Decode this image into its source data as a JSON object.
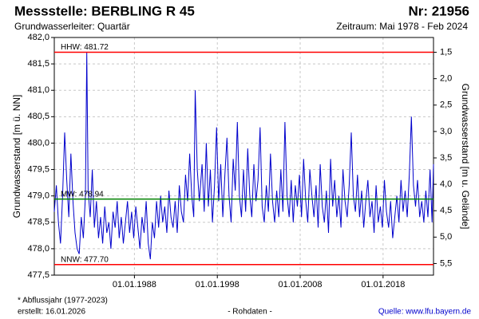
{
  "chart_data": {
    "type": "line",
    "title": "Messstelle: BERBLING R 45",
    "number": "Nr: 21956",
    "subtitle": "Grundwasserleiter: Quartär",
    "period": "Zeitraum: Mai 1978 - Feb 2024",
    "ylabel": "Grundwasserstand [m ü. NN]",
    "y2label": "Grundwasserstand [m u. Gelände]",
    "footnote": "* Abflussjahr (1977-2023)",
    "created": "erstellt:  16.01.2026",
    "data_note": "- Rohdaten -",
    "source": "Quelle: www.lfu.bayern.de",
    "grid": true,
    "xlim": [
      "1978-05",
      "2024-02"
    ],
    "xticks": [
      {
        "value": "1988-01-01",
        "label": "01.01.1988"
      },
      {
        "value": "1998-01-01",
        "label": "01.01.1998"
      },
      {
        "value": "2008-01-01",
        "label": "01.01.2008"
      },
      {
        "value": "2018-01-01",
        "label": "01.01.2018"
      }
    ],
    "ylim": [
      477.5,
      482.0
    ],
    "yticks": [
      {
        "value": 477.5,
        "label": "477,5"
      },
      {
        "value": 478.0,
        "label": "478,0"
      },
      {
        "value": 478.5,
        "label": "478,5"
      },
      {
        "value": 479.0,
        "label": "479,0"
      },
      {
        "value": 479.5,
        "label": "479,5"
      },
      {
        "value": 480.0,
        "label": "480,0"
      },
      {
        "value": 480.5,
        "label": "480,5"
      },
      {
        "value": 481.0,
        "label": "481,0"
      },
      {
        "value": 481.5,
        "label": "481,5"
      },
      {
        "value": 482.0,
        "label": "482,0"
      }
    ],
    "y2lim": [
      5.72,
      1.22
    ],
    "y2ticks": [
      {
        "value": 1.5,
        "label": "1,5"
      },
      {
        "value": 2.0,
        "label": "2,0"
      },
      {
        "value": 2.5,
        "label": "2,5"
      },
      {
        "value": 3.0,
        "label": "3,0"
      },
      {
        "value": 3.5,
        "label": "3,5"
      },
      {
        "value": 4.0,
        "label": "4,0"
      },
      {
        "value": 4.5,
        "label": "4,5"
      },
      {
        "value": 5.0,
        "label": "5,0"
      },
      {
        "value": 5.5,
        "label": "5,5"
      }
    ],
    "reference_lines": [
      {
        "label": "HHW: 481.72",
        "value": 481.72,
        "color": "#ff0000"
      },
      {
        "label": "MW: 478.94",
        "value": 478.94,
        "color": "#008000"
      },
      {
        "label": "NNW: 477.70",
        "value": 477.7,
        "color": "#ff0000"
      }
    ],
    "series": [
      {
        "color": "#0000cc",
        "x": [
          "1978-05",
          "1978-08",
          "1978-11",
          "1979-02",
          "1979-05",
          "1979-08",
          "1979-11",
          "1980-02",
          "1980-05",
          "1980-08",
          "1980-11",
          "1981-02",
          "1981-05",
          "1981-08",
          "1981-11",
          "1982-02",
          "1982-04",
          "1982-06",
          "1982-09",
          "1982-12",
          "1983-03",
          "1983-06",
          "1983-09",
          "1983-12",
          "1984-03",
          "1984-06",
          "1984-09",
          "1984-12",
          "1985-03",
          "1985-06",
          "1985-09",
          "1985-12",
          "1986-03",
          "1986-06",
          "1986-09",
          "1986-12",
          "1987-03",
          "1987-06",
          "1987-09",
          "1987-12",
          "1988-03",
          "1988-06",
          "1988-09",
          "1988-12",
          "1989-03",
          "1989-06",
          "1989-09",
          "1989-12",
          "1990-03",
          "1990-06",
          "1990-09",
          "1990-12",
          "1991-03",
          "1991-06",
          "1991-09",
          "1991-12",
          "1992-03",
          "1992-06",
          "1992-09",
          "1992-12",
          "1993-03",
          "1993-06",
          "1993-09",
          "1993-12",
          "1994-03",
          "1994-06",
          "1994-09",
          "1994-12",
          "1995-03",
          "1995-05",
          "1995-08",
          "1995-11",
          "1996-03",
          "1996-06",
          "1996-09",
          "1996-12",
          "1997-03",
          "1997-06",
          "1997-09",
          "1997-12",
          "1998-03",
          "1998-06",
          "1998-09",
          "1998-12",
          "1999-03",
          "1999-06",
          "1999-09",
          "1999-12",
          "2000-03",
          "2000-06",
          "2000-09",
          "2000-12",
          "2001-03",
          "2001-06",
          "2001-09",
          "2001-12",
          "2002-03",
          "2002-06",
          "2002-09",
          "2002-12",
          "2003-03",
          "2003-06",
          "2003-09",
          "2003-12",
          "2004-03",
          "2004-06",
          "2004-09",
          "2004-12",
          "2005-03",
          "2005-06",
          "2005-09",
          "2005-12",
          "2006-03",
          "2006-06",
          "2006-09",
          "2006-12",
          "2007-03",
          "2007-06",
          "2007-09",
          "2007-12",
          "2008-03",
          "2008-06",
          "2008-09",
          "2008-12",
          "2009-03",
          "2009-06",
          "2009-09",
          "2009-12",
          "2010-03",
          "2010-06",
          "2010-09",
          "2010-12",
          "2011-03",
          "2011-06",
          "2011-09",
          "2011-12",
          "2012-03",
          "2012-06",
          "2012-09",
          "2012-12",
          "2013-03",
          "2013-06",
          "2013-09",
          "2013-12",
          "2014-03",
          "2014-06",
          "2014-09",
          "2014-12",
          "2015-03",
          "2015-06",
          "2015-09",
          "2015-12",
          "2016-03",
          "2016-06",
          "2016-09",
          "2016-12",
          "2017-03",
          "2017-06",
          "2017-09",
          "2017-12",
          "2018-03",
          "2018-06",
          "2018-09",
          "2018-12",
          "2019-03",
          "2019-06",
          "2019-09",
          "2019-12",
          "2020-03",
          "2020-06",
          "2020-09",
          "2020-12",
          "2021-03",
          "2021-06",
          "2021-09",
          "2021-12",
          "2022-03",
          "2022-06",
          "2022-09",
          "2022-12",
          "2023-03",
          "2023-06",
          "2023-09",
          "2023-12",
          "2024-02"
        ],
        "values": [
          478.7,
          479.2,
          478.5,
          478.1,
          479.0,
          480.2,
          479.3,
          478.6,
          479.8,
          478.9,
          478.3,
          478.0,
          477.9,
          478.6,
          478.2,
          479.0,
          481.72,
          479.1,
          478.6,
          479.5,
          478.4,
          478.9,
          478.2,
          478.6,
          478.1,
          478.8,
          478.3,
          478.5,
          478.0,
          478.7,
          478.4,
          478.9,
          478.2,
          478.6,
          478.1,
          478.5,
          478.9,
          478.3,
          478.7,
          478.2,
          478.8,
          478.4,
          478.0,
          478.6,
          478.3,
          478.9,
          478.1,
          477.8,
          478.5,
          478.2,
          478.9,
          478.4,
          479.0,
          478.5,
          478.8,
          478.3,
          479.1,
          478.6,
          478.4,
          478.9,
          478.3,
          479.2,
          478.7,
          478.5,
          479.4,
          478.9,
          479.8,
          479.0,
          478.6,
          481.0,
          479.5,
          478.9,
          479.6,
          478.7,
          480.0,
          478.8,
          479.5,
          478.5,
          479.2,
          480.3,
          478.9,
          479.6,
          478.6,
          479.4,
          480.1,
          479.0,
          478.5,
          479.7,
          479.1,
          480.4,
          479.0,
          478.6,
          479.5,
          478.7,
          479.9,
          479.0,
          478.6,
          479.6,
          478.9,
          479.3,
          480.3,
          478.8,
          478.5,
          479.2,
          478.7,
          479.8,
          478.9,
          478.5,
          479.1,
          478.6,
          479.5,
          478.7,
          480.4,
          479.0,
          478.6,
          479.3,
          478.5,
          479.2,
          478.8,
          479.4,
          478.6,
          479.7,
          478.9,
          478.5,
          479.5,
          479.0,
          478.6,
          479.2,
          478.4,
          479.6,
          478.8,
          478.5,
          479.1,
          478.3,
          479.7,
          478.8,
          479.3,
          478.6,
          479.0,
          478.4,
          479.5,
          478.9,
          478.6,
          479.2,
          480.2,
          479.0,
          478.7,
          479.4,
          478.6,
          479.1,
          478.4,
          478.9,
          479.3,
          478.6,
          478.9,
          478.3,
          479.2,
          478.5,
          478.8,
          478.4,
          479.3,
          478.7,
          478.4,
          478.9,
          478.2,
          478.6,
          479.0,
          478.5,
          479.3,
          478.7,
          479.1,
          478.6,
          479.4,
          480.5,
          479.2,
          478.8,
          479.3,
          478.6,
          478.9,
          478.5,
          479.1,
          478.6,
          479.5,
          478.5,
          479.6
        ]
      }
    ]
  }
}
